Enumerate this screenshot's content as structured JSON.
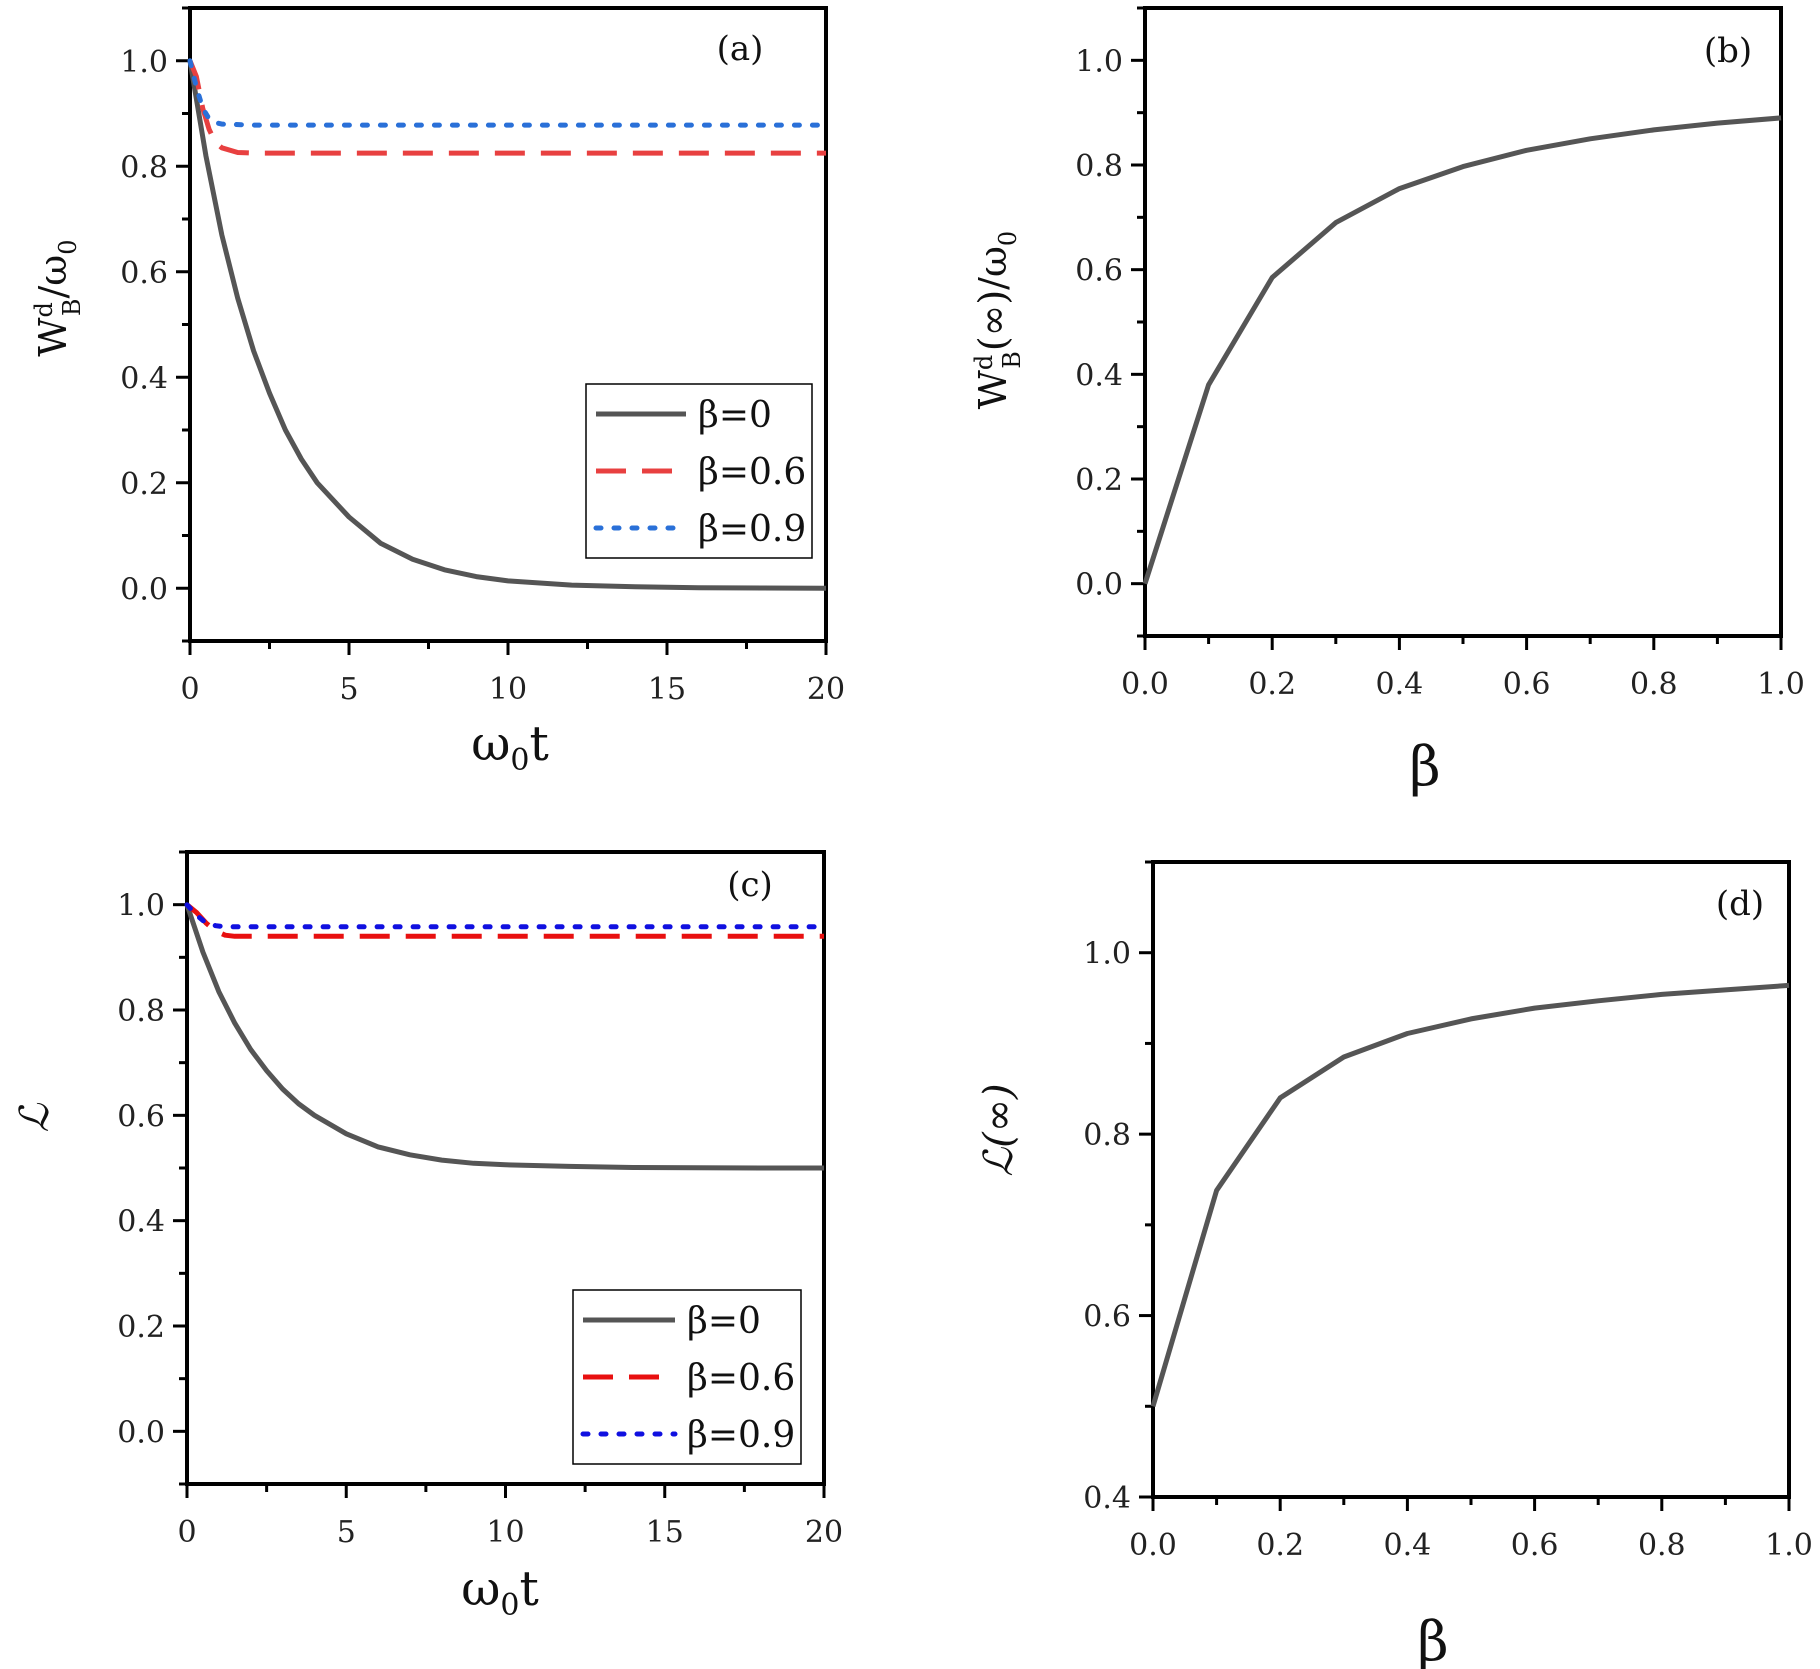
{
  "chart_data": [
    {
      "id": "a",
      "type": "line",
      "panel_label": "(a)",
      "xlabel": "ω0t",
      "ylabel": "WdB/ω0",
      "xlim": [
        0,
        20
      ],
      "ylim": [
        -0.1,
        1.1
      ],
      "xticks": [
        0,
        5,
        10,
        15,
        20
      ],
      "xtick_labels": [
        "0",
        "5",
        "10",
        "15",
        "20"
      ],
      "yticks": [
        0.0,
        0.2,
        0.4,
        0.6,
        0.8,
        1.0
      ],
      "ytick_labels": [
        "0.0",
        "0.2",
        "0.4",
        "0.6",
        "0.8",
        "1.0"
      ],
      "legend": "lower-right",
      "series": [
        {
          "name": "β=0",
          "color": "#555555",
          "dash": "solid",
          "x": [
            0,
            0.5,
            1,
            1.5,
            2,
            2.5,
            3,
            3.5,
            4,
            5,
            6,
            7,
            8,
            9,
            10,
            12,
            14,
            16,
            18,
            20
          ],
          "y": [
            1.0,
            0.82,
            0.67,
            0.55,
            0.45,
            0.37,
            0.3,
            0.245,
            0.2,
            0.135,
            0.085,
            0.055,
            0.035,
            0.022,
            0.014,
            0.006,
            0.003,
            0.001,
            0.0005,
            0.0
          ]
        },
        {
          "name": "β=0.6",
          "color": "#e84040",
          "dash": "dash",
          "x": [
            0,
            0.2,
            0.4,
            0.6,
            0.8,
            1,
            1.5,
            2,
            5,
            10,
            15,
            20
          ],
          "y": [
            1.0,
            0.97,
            0.91,
            0.87,
            0.845,
            0.835,
            0.826,
            0.825,
            0.825,
            0.825,
            0.825,
            0.825
          ]
        },
        {
          "name": "β=0.9",
          "color": "#2a70d8",
          "dash": "dot",
          "x": [
            0,
            0.2,
            0.4,
            0.6,
            0.8,
            1,
            2,
            5,
            10,
            15,
            20
          ],
          "y": [
            1.0,
            0.95,
            0.91,
            0.89,
            0.883,
            0.88,
            0.878,
            0.878,
            0.878,
            0.878,
            0.878
          ]
        }
      ]
    },
    {
      "id": "b",
      "type": "line",
      "panel_label": "(b)",
      "xlabel": "β",
      "ylabel": "WdB(∞)/ω0",
      "xlim": [
        0,
        1
      ],
      "ylim": [
        -0.1,
        1.1
      ],
      "xticks": [
        0,
        0.2,
        0.4,
        0.6,
        0.8,
        1.0
      ],
      "xtick_labels": [
        "0.0",
        "0.2",
        "0.4",
        "0.6",
        "0.8",
        "1.0"
      ],
      "yticks": [
        0.0,
        0.2,
        0.4,
        0.6,
        0.8,
        1.0
      ],
      "ytick_labels": [
        "0.0",
        "0.2",
        "0.4",
        "0.6",
        "0.8",
        "1.0"
      ],
      "series": [
        {
          "name": "",
          "color": "#555555",
          "dash": "solid",
          "x": [
            0,
            0.1,
            0.2,
            0.3,
            0.4,
            0.5,
            0.6,
            0.7,
            0.8,
            0.9,
            1.0
          ],
          "y": [
            0.0,
            0.38,
            0.585,
            0.69,
            0.755,
            0.797,
            0.828,
            0.85,
            0.867,
            0.88,
            0.89
          ]
        }
      ]
    },
    {
      "id": "c",
      "type": "line",
      "panel_label": "(c)",
      "xlabel": "ω0t",
      "ylabel": "ℒ",
      "xlim": [
        0,
        20
      ],
      "ylim": [
        -0.1,
        1.1
      ],
      "xticks": [
        0,
        5,
        10,
        15,
        20
      ],
      "xtick_labels": [
        "0",
        "5",
        "10",
        "15",
        "20"
      ],
      "yticks": [
        0.0,
        0.2,
        0.4,
        0.6,
        0.8,
        1.0
      ],
      "ytick_labels": [
        "0.0",
        "0.2",
        "0.4",
        "0.6",
        "0.8",
        "1.0"
      ],
      "legend": "lower-right",
      "series": [
        {
          "name": "β=0",
          "color": "#555555",
          "dash": "solid",
          "x": [
            0,
            0.5,
            1,
            1.5,
            2,
            2.5,
            3,
            3.5,
            4,
            5,
            6,
            7,
            8,
            9,
            10,
            12,
            14,
            16,
            18,
            20
          ],
          "y": [
            1.0,
            0.91,
            0.835,
            0.775,
            0.725,
            0.685,
            0.65,
            0.622,
            0.6,
            0.565,
            0.54,
            0.525,
            0.515,
            0.509,
            0.506,
            0.503,
            0.501,
            0.5005,
            0.5,
            0.5
          ]
        },
        {
          "name": "β=0.6",
          "color": "#e81010",
          "dash": "dash",
          "x": [
            0,
            0.3,
            0.6,
            0.9,
            1.2,
            1.5,
            2,
            5,
            10,
            15,
            20
          ],
          "y": [
            1.0,
            0.985,
            0.965,
            0.95,
            0.942,
            0.94,
            0.94,
            0.94,
            0.94,
            0.94,
            0.94
          ]
        },
        {
          "name": "β=0.9",
          "color": "#1010e0",
          "dash": "dot",
          "x": [
            0,
            0.3,
            0.6,
            0.9,
            1.2,
            2,
            5,
            10,
            15,
            20
          ],
          "y": [
            1.0,
            0.98,
            0.965,
            0.96,
            0.958,
            0.958,
            0.958,
            0.958,
            0.958,
            0.958
          ]
        }
      ]
    },
    {
      "id": "d",
      "type": "line",
      "panel_label": "(d)",
      "xlabel": "β",
      "ylabel": "ℒ(∞)",
      "xlim": [
        0,
        1
      ],
      "ylim": [
        0.4,
        1.1
      ],
      "xticks": [
        0,
        0.2,
        0.4,
        0.6,
        0.8,
        1.0
      ],
      "xtick_labels": [
        "0.0",
        "0.2",
        "0.4",
        "0.6",
        "0.8",
        "1.0"
      ],
      "yticks": [
        0.4,
        0.6,
        0.8,
        1.0
      ],
      "ytick_labels": [
        "0.4",
        "0.6",
        "0.8",
        "1.0"
      ],
      "series": [
        {
          "name": "",
          "color": "#555555",
          "dash": "solid",
          "x": [
            0,
            0.1,
            0.2,
            0.3,
            0.4,
            0.5,
            0.6,
            0.7,
            0.8,
            0.9,
            1.0
          ],
          "y": [
            0.5,
            0.738,
            0.84,
            0.885,
            0.911,
            0.927,
            0.939,
            0.947,
            0.954,
            0.959,
            0.964
          ]
        }
      ]
    }
  ]
}
